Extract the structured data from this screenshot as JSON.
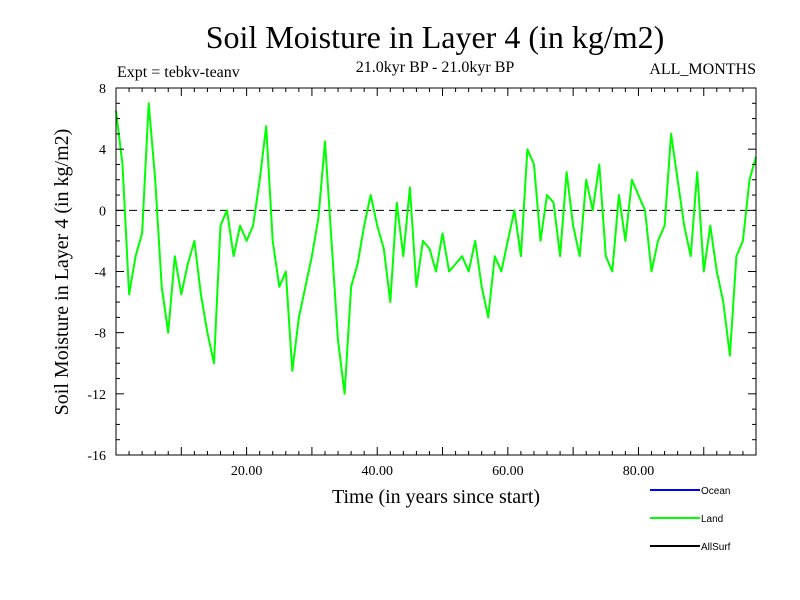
{
  "chart_data": {
    "type": "line",
    "title": "Soil Moisture in Layer 4 (in kg/m2)",
    "subtitle": "21.0kyr BP - 21.0kyr BP",
    "experiment": "Expt = tebkv-teanv",
    "period": "ALL_MONTHS",
    "xlabel": "Time (in years since start)",
    "ylabel": "Soil Moisture in Layer 4 (in kg/m2)",
    "xlim": [
      0,
      98
    ],
    "ylim": [
      -16,
      8
    ],
    "xticks": [
      20,
      40,
      60,
      80
    ],
    "xtick_labels": [
      "20.00",
      "40.00",
      "60.00",
      "80.00"
    ],
    "yticks": [
      8,
      4,
      0,
      -4,
      -8,
      -12,
      -16
    ],
    "ytick_labels": [
      "8",
      "4",
      "0",
      "-4",
      "-8",
      "-12",
      "-16"
    ],
    "reference_line": 0,
    "legend": [
      {
        "name": "Ocean",
        "color": "#0000ff"
      },
      {
        "name": "Land",
        "color": "#00ff00"
      },
      {
        "name": "AllSurf",
        "color": "#000000"
      }
    ],
    "series": [
      {
        "name": "Land",
        "color": "#00ff00",
        "x": [
          0,
          1,
          2,
          3,
          4,
          5,
          6,
          7,
          8,
          9,
          10,
          11,
          12,
          13,
          14,
          15,
          16,
          17,
          18,
          19,
          20,
          21,
          22,
          23,
          24,
          25,
          26,
          27,
          28,
          29,
          30,
          31,
          32,
          33,
          34,
          35,
          36,
          37,
          38,
          39,
          40,
          41,
          42,
          43,
          44,
          45,
          46,
          47,
          48,
          49,
          50,
          51,
          52,
          53,
          54,
          55,
          56,
          57,
          58,
          59,
          60,
          61,
          62,
          63,
          64,
          65,
          66,
          67,
          68,
          69,
          70,
          71,
          72,
          73,
          74,
          75,
          76,
          77,
          78,
          79,
          80,
          81,
          82,
          83,
          84,
          85,
          86,
          87,
          88,
          89,
          90,
          91,
          92,
          93,
          94,
          95,
          96,
          97,
          98
        ],
        "values": [
          6.5,
          3,
          -5.5,
          -3,
          -1.5,
          7,
          2,
          -5,
          -8,
          -3,
          -5.5,
          -3.5,
          -2,
          -5.5,
          -8,
          -10,
          -1,
          0,
          -3,
          -1,
          -2,
          -1,
          2,
          5.5,
          -2,
          -5,
          -4,
          -10.5,
          -7,
          -5,
          -3,
          -0.5,
          4.5,
          -2,
          -8.5,
          -12,
          -5,
          -3.5,
          -1,
          1,
          -1,
          -2.5,
          -6,
          0.5,
          -3,
          1.5,
          -5,
          -2,
          -2.5,
          -4,
          -1.5,
          -4,
          -3.5,
          -3,
          -4,
          -2,
          -5,
          -7,
          -3,
          -4,
          -2,
          0,
          -3,
          4,
          3,
          -2,
          1,
          0.5,
          -3,
          2.5,
          -1,
          -3,
          2,
          0,
          3,
          -3,
          -4,
          1,
          -2,
          2,
          1,
          0,
          -4,
          -2,
          -1,
          5,
          2,
          -1,
          -3,
          2.5,
          -4,
          -1,
          -4,
          -6,
          -9.5,
          -3,
          -2,
          2,
          3.5
        ]
      }
    ]
  }
}
